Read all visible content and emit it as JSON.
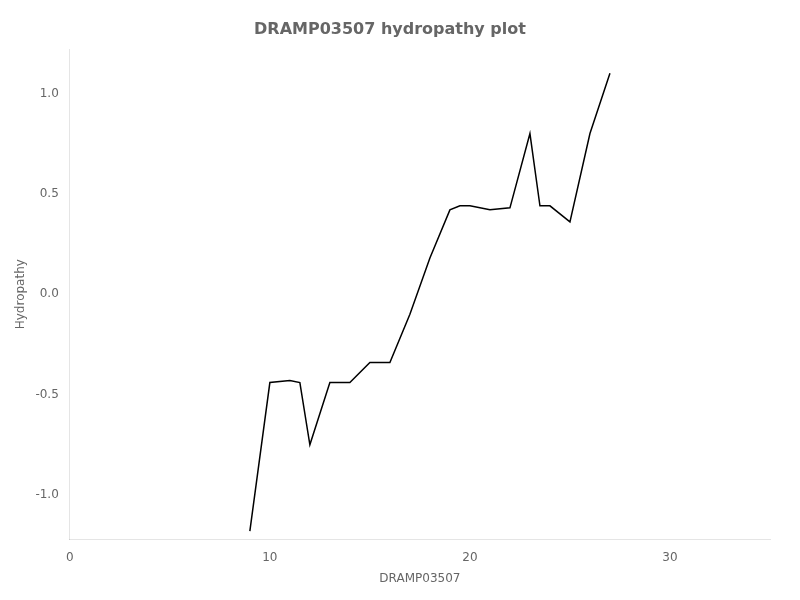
{
  "chart_data": {
    "type": "line",
    "title": "DRAMP03507 hydropathy plot",
    "xlabel": "DRAMP03507",
    "ylabel": "Hydropathy",
    "x": [
      9.0,
      10.0,
      11.0,
      11.5,
      12.0,
      13.0,
      14.0,
      15.0,
      16.0,
      17.0,
      18.0,
      19.0,
      19.5,
      20.0,
      21.0,
      22.0,
      23.0,
      23.5,
      24.0,
      25.0,
      26.0,
      27.0
    ],
    "values": [
      -1.18,
      -0.44,
      -0.43,
      -0.44,
      -0.75,
      -0.44,
      -0.44,
      -0.34,
      -0.34,
      -0.1,
      0.18,
      0.42,
      0.44,
      0.44,
      0.42,
      0.43,
      0.8,
      0.44,
      0.44,
      0.36,
      0.8,
      1.1
    ],
    "color": "#000000",
    "xlim": [
      0,
      35
    ],
    "xticks": [
      0,
      10,
      20,
      30
    ],
    "ylim": [
      -1.22,
      1.22
    ],
    "yticks": [
      {
        "value": -1.0,
        "label": "-1.0"
      },
      -0.5,
      {
        "value": 0.0,
        "label": "0.0"
      },
      0.5,
      {
        "value": 1.0,
        "label": "1.0"
      }
    ],
    "grid": false
  }
}
